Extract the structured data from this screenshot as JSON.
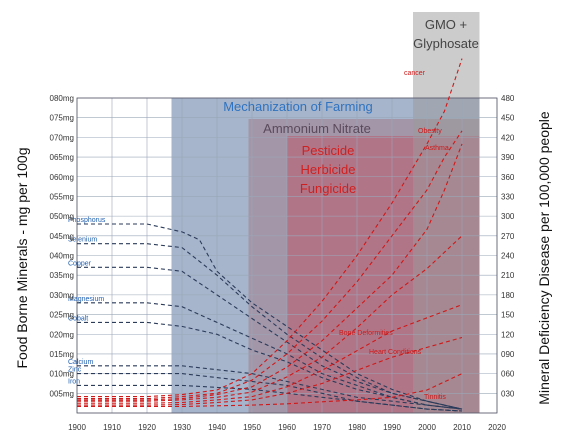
{
  "chart_data": {
    "type": "line",
    "title": "",
    "xlabel": "",
    "ylabel_left": "Food Borne Minerals - mg per 100g",
    "ylabel_right": "Mineral Deficiency Disease per 100,000 people",
    "x_ticks": [
      "1900",
      "1910",
      "1920",
      "1930",
      "1940",
      "1950",
      "1960",
      "1970",
      "1980",
      "1990",
      "2000",
      "2010",
      "2020"
    ],
    "y_left_ticks": [
      "005mg",
      "010mg",
      "015mg",
      "020mg",
      "025mg",
      "030mg",
      "035mg",
      "040mg",
      "045mg",
      "050mg",
      "055mg",
      "060mg",
      "065mg",
      "070mg",
      "075mg",
      "080mg"
    ],
    "y_right_ticks": [
      "030",
      "060",
      "090",
      "120",
      "150",
      "180",
      "210",
      "240",
      "270",
      "300",
      "330",
      "360",
      "390",
      "420",
      "450",
      "480"
    ],
    "xlim": [
      1900,
      2020
    ],
    "ylim_left": [
      0,
      80
    ],
    "ylim_right": [
      0,
      480
    ],
    "grid": true,
    "bands": [
      {
        "label": "Mechanization of Farming",
        "x0": 1927,
        "x1": 2015,
        "color": "#3a5a8c",
        "text_color": "#2f73c0",
        "lines": [
          "Mechanization of Farming"
        ]
      },
      {
        "label": "Ammonium Nitrate",
        "x0": 1949,
        "x1": 2015,
        "color": "#a07080",
        "text_color": "#5a4a5a",
        "lines": [
          "Ammonium Nitrate"
        ]
      },
      {
        "label": "Pesticide Herbicide Fungicide",
        "x0": 1960,
        "x1": 2015,
        "color": "#c05060",
        "text_color": "#d02020",
        "lines": [
          "Pesticide",
          "Herbicide",
          "Fungicide"
        ]
      },
      {
        "label": "GMO + Glyphosate",
        "x0": 1996,
        "x1": 2015,
        "color": "#9a9a9a",
        "text_color": "#444444",
        "lines": [
          "GMO +",
          "Glyphosate"
        ]
      }
    ],
    "mineral_series": [
      {
        "name": "Phosphorus",
        "x": [
          1900,
          1920,
          1930,
          1935,
          1940,
          1950,
          1960,
          1970,
          1980,
          1990,
          2000,
          2010
        ],
        "y": [
          48,
          48,
          46,
          44,
          36,
          28,
          22,
          16,
          10,
          6,
          3,
          1
        ]
      },
      {
        "name": "Selenium",
        "x": [
          1900,
          1920,
          1930,
          1940,
          1950,
          1960,
          1970,
          1980,
          1990,
          2000,
          2010
        ],
        "y": [
          43,
          43,
          42,
          35,
          27,
          20,
          14,
          9,
          5,
          3,
          1
        ]
      },
      {
        "name": "Copper",
        "x": [
          1900,
          1920,
          1930,
          1940,
          1950,
          1960,
          1970,
          1980,
          1990,
          2000,
          2010
        ],
        "y": [
          37,
          37,
          36,
          30,
          24,
          18,
          12,
          8,
          5,
          3,
          1
        ]
      },
      {
        "name": "Magnesium",
        "x": [
          1900,
          1920,
          1930,
          1940,
          1950,
          1960,
          1970,
          1980,
          1990,
          2000,
          2010
        ],
        "y": [
          28,
          28,
          27,
          23,
          19,
          15,
          10,
          7,
          4,
          2,
          1
        ]
      },
      {
        "name": "Cobalt",
        "x": [
          1900,
          1920,
          1930,
          1940,
          1950,
          1960,
          1970,
          1980,
          1990,
          2000,
          2010
        ],
        "y": [
          23,
          23,
          22,
          20,
          16,
          13,
          9,
          6,
          4,
          2,
          1
        ]
      },
      {
        "name": "Calcium",
        "x": [
          1900,
          1920,
          1930,
          1940,
          1950,
          1960,
          1970,
          1980,
          1990,
          2000,
          2010
        ],
        "y": [
          12,
          12,
          12,
          11,
          10,
          8,
          6,
          4,
          3,
          2,
          1
        ]
      },
      {
        "name": "Zinc",
        "x": [
          1900,
          1920,
          1930,
          1940,
          1950,
          1960,
          1970,
          1980,
          1990,
          2000,
          2010
        ],
        "y": [
          10,
          10,
          10,
          9,
          8,
          7,
          5,
          3,
          2,
          1,
          0.5
        ]
      },
      {
        "name": "Iron",
        "x": [
          1900,
          1920,
          1930,
          1940,
          1950,
          1960,
          1970,
          1980,
          1990,
          2000,
          2010
        ],
        "y": [
          7,
          7,
          7,
          6.5,
          6,
          5,
          4,
          3,
          2,
          1,
          0.5
        ]
      }
    ],
    "disease_series": [
      {
        "name": "cancer",
        "x": [
          1900,
          1920,
          1930,
          1940,
          1950,
          1960,
          1970,
          1980,
          1990,
          2000,
          2005,
          2010
        ],
        "y": [
          25,
          25,
          28,
          35,
          60,
          110,
          170,
          240,
          320,
          410,
          460,
          540
        ]
      },
      {
        "name": "Obesity",
        "x": [
          1900,
          1920,
          1930,
          1940,
          1950,
          1960,
          1970,
          1980,
          1990,
          2000,
          2005,
          2010
        ],
        "y": [
          22,
          22,
          25,
          30,
          50,
          90,
          140,
          200,
          270,
          340,
          390,
          430
        ]
      },
      {
        "name": "Asthma",
        "x": [
          1900,
          1920,
          1930,
          1940,
          1950,
          1960,
          1970,
          1980,
          1990,
          2000,
          2005,
          2010
        ],
        "y": [
          20,
          20,
          22,
          28,
          40,
          70,
          110,
          160,
          210,
          280,
          340,
          410
        ]
      },
      {
        "name": "",
        "x": [
          1900,
          1920,
          1930,
          1940,
          1950,
          1960,
          1970,
          1980,
          1990,
          2000,
          2010
        ],
        "y": [
          18,
          18,
          20,
          24,
          32,
          55,
          85,
          130,
          180,
          220,
          270
        ]
      },
      {
        "name": "Bone Deformities",
        "x": [
          1900,
          1920,
          1930,
          1940,
          1950,
          1960,
          1970,
          1980,
          1990,
          2000,
          2010
        ],
        "y": [
          15,
          15,
          16,
          20,
          25,
          40,
          65,
          95,
          125,
          145,
          165
        ]
      },
      {
        "name": "Heart Conditions",
        "x": [
          1900,
          1920,
          1930,
          1940,
          1950,
          1960,
          1970,
          1980,
          1990,
          2000,
          2010
        ],
        "y": [
          12,
          12,
          13,
          16,
          20,
          30,
          45,
          65,
          85,
          100,
          115
        ]
      },
      {
        "name": "Tinnitis",
        "x": [
          1900,
          1920,
          1930,
          1940,
          1950,
          1960,
          1970,
          1980,
          1990,
          2000,
          2010
        ],
        "y": [
          10,
          10,
          10,
          11,
          12,
          14,
          17,
          20,
          24,
          35,
          60
        ]
      }
    ]
  }
}
